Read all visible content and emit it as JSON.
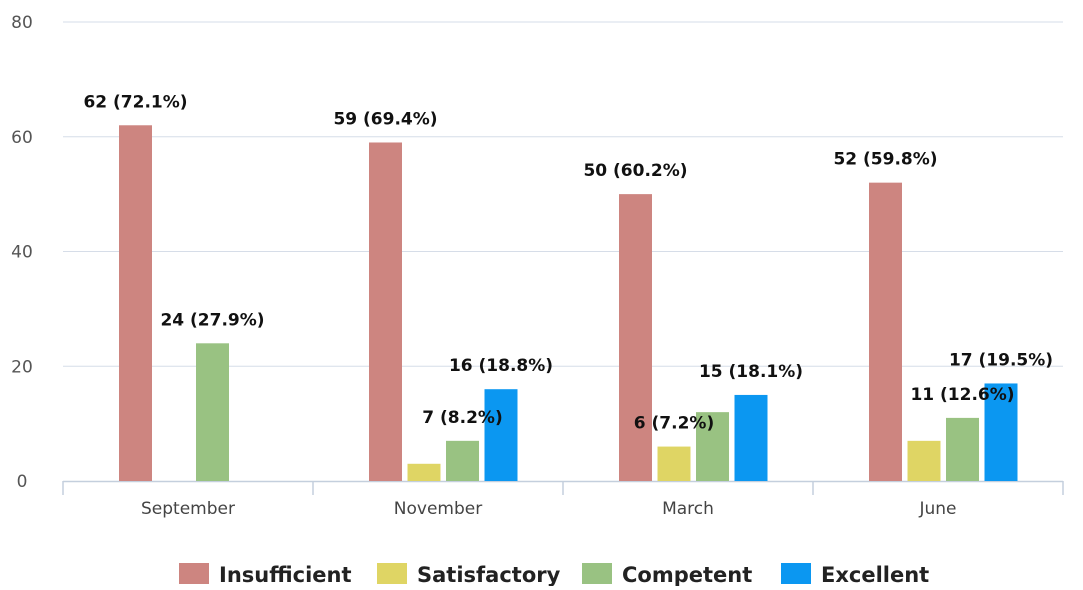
{
  "chart_data": {
    "type": "bar",
    "title": "",
    "xlabel": "",
    "ylabel": "",
    "ylim": [
      0,
      80
    ],
    "yticks": [
      0,
      20,
      40,
      60,
      80
    ],
    "grid": true,
    "legend_position": "bottom",
    "categories": [
      "September",
      "November",
      "March",
      "June"
    ],
    "series": [
      {
        "name": "Insufficient",
        "color": "#cd8580",
        "values": [
          62,
          59,
          50,
          52
        ],
        "labels": [
          "62 (72.1%)",
          "59 (69.4%)",
          "50 (60.2%)",
          "52 (59.8%)"
        ]
      },
      {
        "name": "Satisfactory",
        "color": "#dfd564",
        "values": [
          0,
          3,
          6,
          7
        ],
        "labels": [
          "",
          "",
          "6 (7.2%)",
          ""
        ]
      },
      {
        "name": "Competent",
        "color": "#99c282",
        "values": [
          24,
          7,
          12,
          11
        ],
        "labels": [
          "24 (27.9%)",
          "7 (8.2%)",
          "",
          "11 (12.6%)"
        ]
      },
      {
        "name": "Excellent",
        "color": "#0b97f1",
        "values": [
          0,
          16,
          15,
          17
        ],
        "labels": [
          "",
          "16 (18.8%)",
          "15 (18.1%)",
          "17 (19.5%)"
        ]
      }
    ]
  }
}
